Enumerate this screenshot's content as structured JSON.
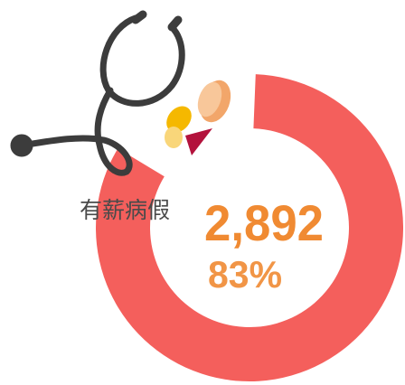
{
  "chart_data": {
    "type": "donut",
    "categories": [
      "有薪病假"
    ],
    "values": [
      83
    ],
    "value_labels": [
      "83%"
    ],
    "color": "#f45f5c",
    "counts": [
      2892
    ],
    "count_labels": [
      "2,892"
    ]
  }
}
